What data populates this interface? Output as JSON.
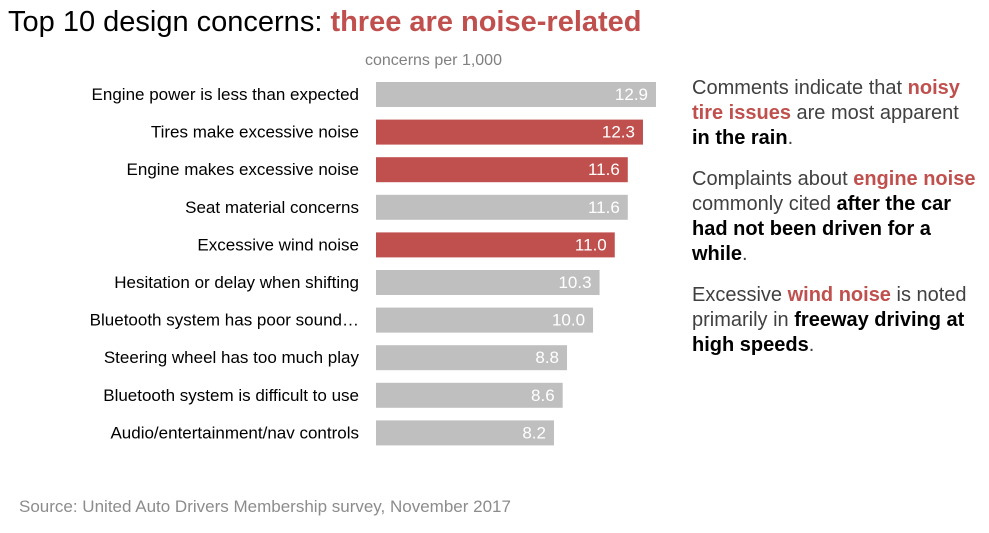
{
  "title": {
    "prefix": "Top 10 design concerns: ",
    "highlight": "three are noise-related"
  },
  "units_label": "concerns per 1,000",
  "colors": {
    "highlight": "#c0504d",
    "default": "#bfbfbf"
  },
  "chart_data": {
    "type": "bar",
    "orientation": "horizontal",
    "categories": [
      "Engine power is less than expected",
      "Tires make excessive noise",
      "Engine makes excessive noise",
      "Seat material concerns",
      "Excessive wind noise",
      "Hesitation or delay when shifting",
      "Bluetooth system has poor sound…",
      "Steering wheel has too much play",
      "Bluetooth system is difficult to use",
      "Audio/entertainment/nav controls"
    ],
    "values": [
      12.9,
      12.3,
      11.6,
      11.6,
      11.0,
      10.3,
      10.0,
      8.8,
      8.6,
      8.2
    ],
    "value_labels": [
      "12.9",
      "12.3",
      "11.6",
      "11.6",
      "11.0",
      "10.3",
      "10.0",
      "8.8",
      "8.6",
      "8.2"
    ],
    "highlighted": [
      false,
      true,
      true,
      false,
      true,
      false,
      false,
      false,
      false,
      false
    ],
    "xlim": [
      0,
      12.9
    ]
  },
  "comments": [
    {
      "parts": [
        {
          "text": "Comments indicate that ",
          "style": "plain"
        },
        {
          "text": "noisy tire issues",
          "style": "red"
        },
        {
          "text": " are most apparent ",
          "style": "plain"
        },
        {
          "text": "in the rain",
          "style": "bold"
        },
        {
          "text": ".",
          "style": "plain"
        }
      ]
    },
    {
      "parts": [
        {
          "text": "Complaints about ",
          "style": "plain"
        },
        {
          "text": "engine noise",
          "style": "red"
        },
        {
          "text": " commonly cited ",
          "style": "plain"
        },
        {
          "text": "after the car had not been driven for a while",
          "style": "bold"
        },
        {
          "text": ".",
          "style": "plain"
        }
      ]
    },
    {
      "parts": [
        {
          "text": "Excessive ",
          "style": "plain"
        },
        {
          "text": "wind noise",
          "style": "red"
        },
        {
          "text": " is noted primarily in ",
          "style": "plain"
        },
        {
          "text": "freeway driving at high speeds",
          "style": "bold"
        },
        {
          "text": ".",
          "style": "plain"
        }
      ]
    }
  ],
  "source": "Source: United Auto Drivers Membership survey, November 2017"
}
